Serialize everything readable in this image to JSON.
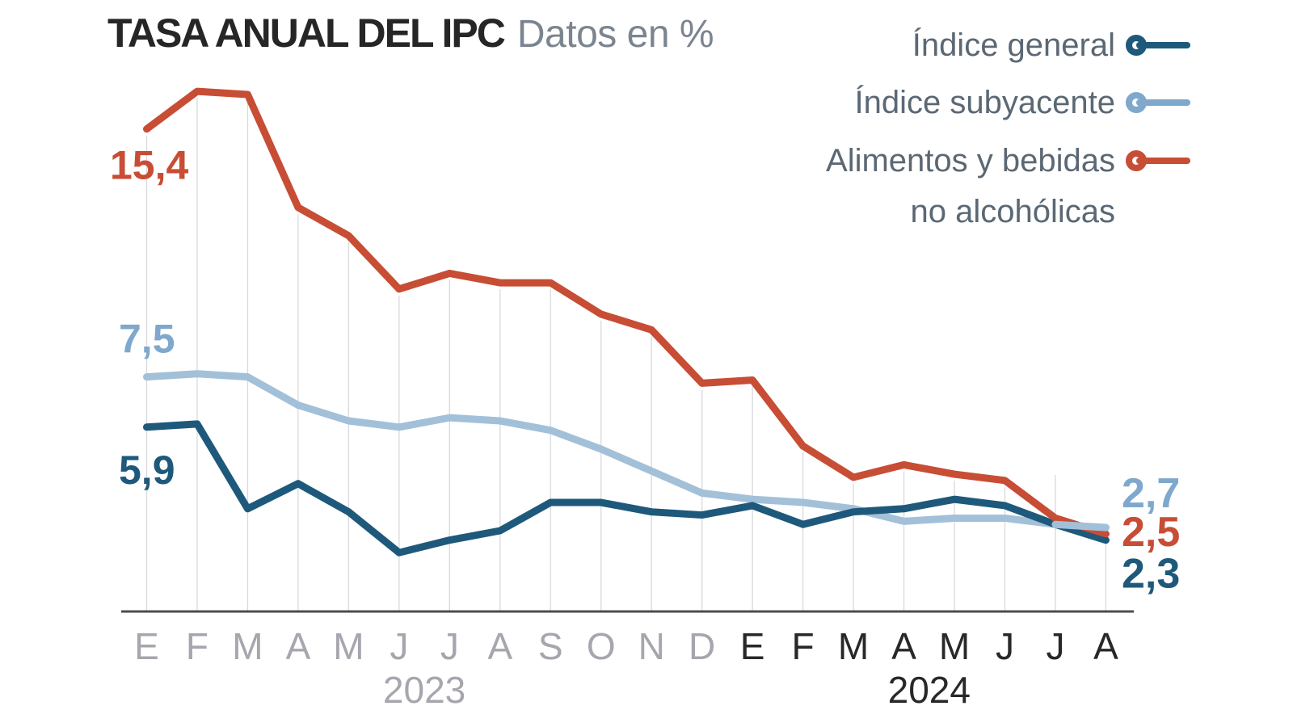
{
  "header": {
    "title": "TASA ANUAL DEL IPC",
    "subtitle": "Datos en %"
  },
  "legend": {
    "items": [
      {
        "line1": "Índice general",
        "line2": "",
        "series": 0
      },
      {
        "line1": "Índice subyacente",
        "line2": "",
        "series": 1
      },
      {
        "line1": "Alimentos y bebidas",
        "line2": "no alcohólicas",
        "series": 2
      }
    ]
  },
  "colors": {
    "background": "#ffffff",
    "title_text": "#262626",
    "subtitle_text": "#7b8590",
    "legend_text": "#5b6874",
    "axis_line": "#4c4c4c",
    "gridline": "#d9d9de",
    "tick_2023": "#a6a6ae",
    "tick_2024": "#28282a"
  },
  "chart_data": {
    "type": "line",
    "title": "TASA ANUAL DEL IPC",
    "subtitle": "Datos en %",
    "unit": "%",
    "x_labels": [
      "E",
      "F",
      "M",
      "A",
      "M",
      "J",
      "J",
      "A",
      "S",
      "O",
      "N",
      "D",
      "E",
      "F",
      "M",
      "A",
      "M",
      "J",
      "J",
      "A"
    ],
    "years": [
      {
        "label": "2023",
        "months": 12
      },
      {
        "label": "2024",
        "months": 8
      }
    ],
    "ylim": [
      0,
      17.5
    ],
    "grid": "vertical-monthly",
    "legend_position": "top-right",
    "series": [
      {
        "name": "Índice general",
        "color": "#1e597b",
        "start_label": "5,9",
        "end_label": "2,3",
        "values": [
          5.9,
          6.0,
          3.3,
          4.1,
          3.2,
          1.9,
          2.3,
          2.6,
          3.5,
          3.5,
          3.2,
          3.1,
          3.4,
          2.8,
          3.2,
          3.3,
          3.6,
          3.4,
          2.8,
          2.3
        ]
      },
      {
        "name": "Índice subyacente",
        "color": "#a3c0d9",
        "label_color": "#7fa8cc",
        "start_label": "7,5",
        "end_label": "2,7",
        "values": [
          7.5,
          7.6,
          7.5,
          6.6,
          6.1,
          5.9,
          6.2,
          6.1,
          5.8,
          5.2,
          4.5,
          3.8,
          3.6,
          3.5,
          3.3,
          2.9,
          3.0,
          3.0,
          2.8,
          2.7
        ]
      },
      {
        "name": "Alimentos y bebidas no alcohólicas",
        "color": "#c84d35",
        "start_label": "15,4",
        "end_label": "2,5",
        "values": [
          15.4,
          16.6,
          16.5,
          12.9,
          12.0,
          10.3,
          10.8,
          10.5,
          10.5,
          9.5,
          9.0,
          7.3,
          7.4,
          5.3,
          4.3,
          4.7,
          4.4,
          4.2,
          3.0,
          2.5
        ]
      }
    ]
  }
}
